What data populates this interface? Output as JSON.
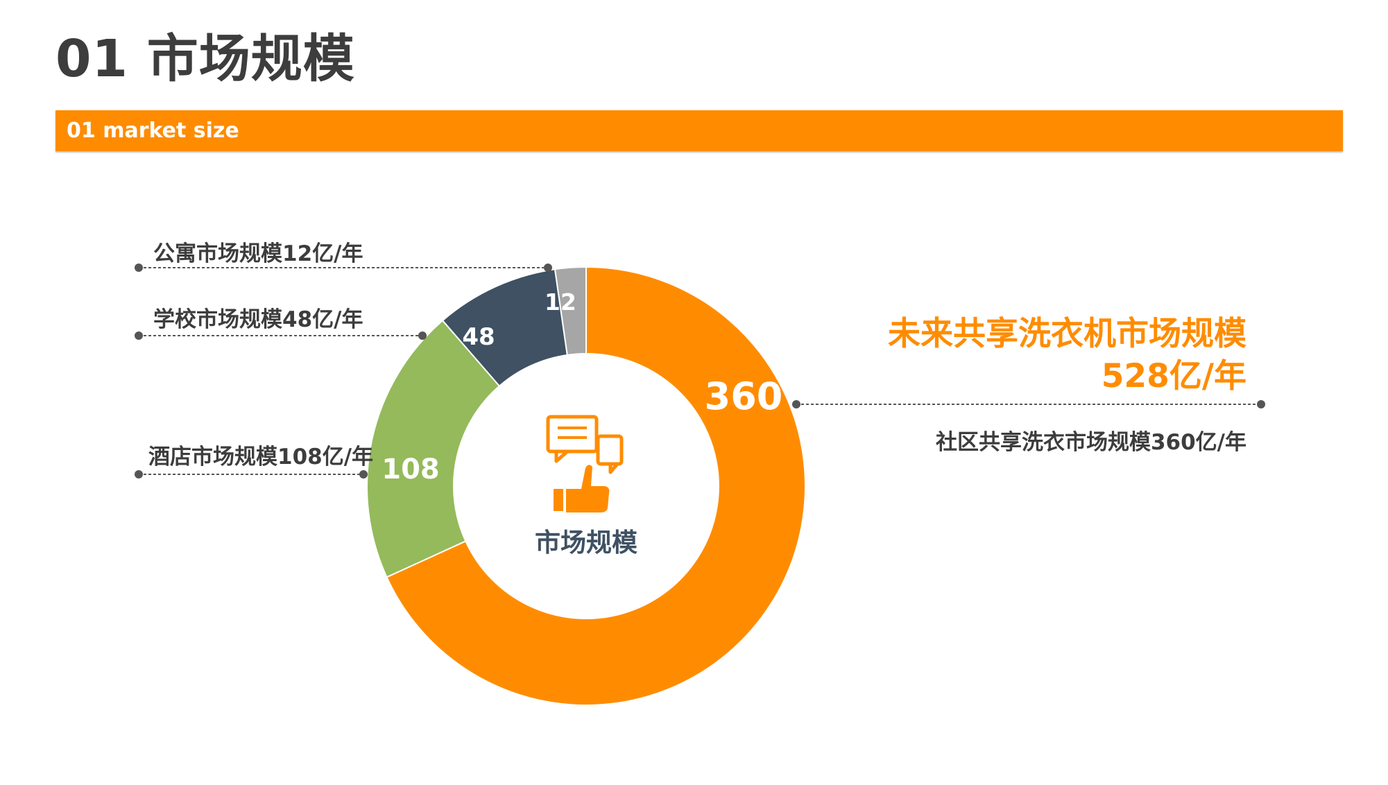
{
  "header": {
    "title": "01 市场规模",
    "subtitle": "01 market size"
  },
  "colors": {
    "orange": "#ff8c00",
    "green": "#94ba5c",
    "slate": "#3f5163",
    "gray": "#a6a6a6",
    "text_dark": "#3d3d3d",
    "leader": "#555555"
  },
  "chart_data": {
    "type": "pie",
    "variant": "donut",
    "title": "",
    "center_label": "市场规模",
    "center_icon": "thumbs-up-chat-icon",
    "slices": [
      {
        "label": "社区共享洗衣市场规模360亿/年",
        "value": 360,
        "value_label": "360",
        "color": "#ff8c00"
      },
      {
        "label": "酒店市场规模108亿/年",
        "value": 108,
        "value_label": "108",
        "color": "#94ba5c"
      },
      {
        "label": "学校市场规模48亿/年",
        "value": 48,
        "value_label": "48",
        "color": "#3f5163"
      },
      {
        "label": "公寓市场规模12亿/年",
        "value": 12,
        "value_label": "12",
        "color": "#a6a6a6"
      }
    ]
  },
  "summary": {
    "line1": "未来共享洗衣机市场规模",
    "line2": "528亿/年"
  }
}
